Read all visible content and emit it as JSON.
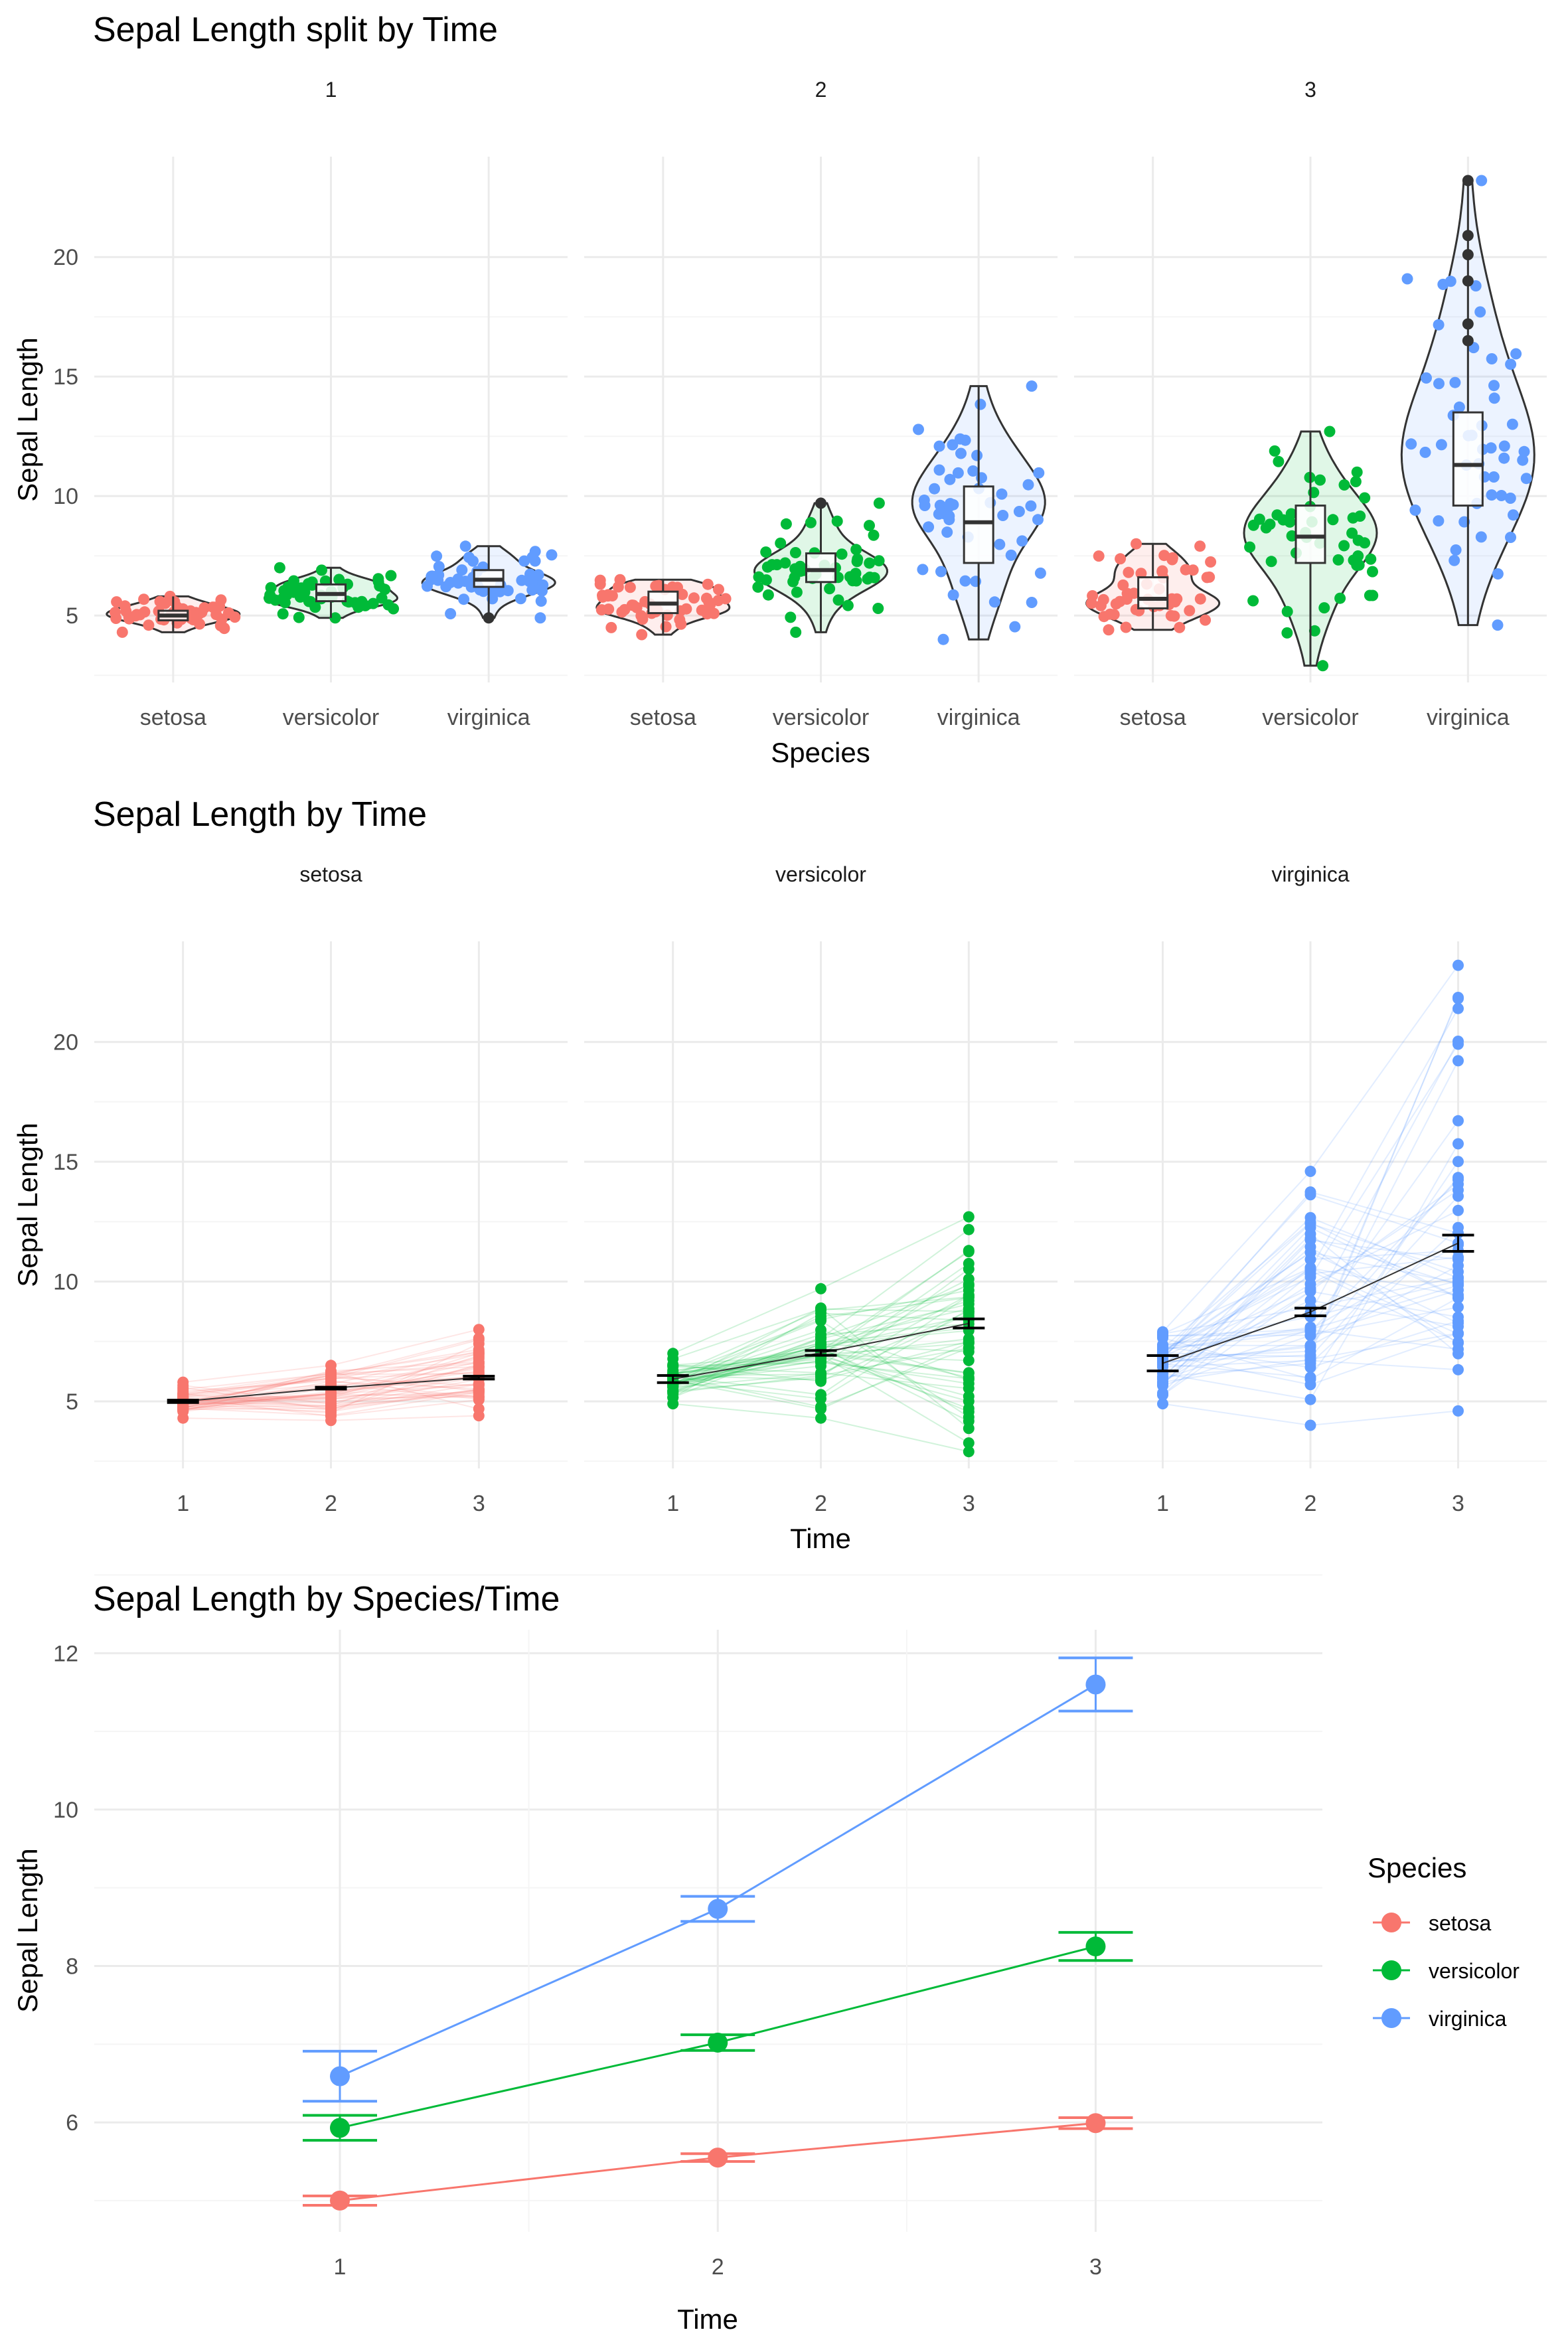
{
  "colors": {
    "setosa": "#F8766D",
    "versicolor": "#00BA38",
    "virginica": "#619CFF",
    "grid_major": "#EBEBEB",
    "grid_minor": "#F5F5F5",
    "dark": "#333333"
  },
  "chart_data": [
    {
      "type": "violin",
      "title": "Sepal Length split by Time",
      "xlabel": "Species",
      "ylabel": "Sepal Length",
      "facet_labels": [
        "1",
        "2",
        "3"
      ],
      "categories": [
        "setosa",
        "versicolor",
        "virginica"
      ],
      "ylim": [
        2.2,
        24.2
      ],
      "yticks": [
        5,
        10,
        15,
        20
      ],
      "grid": true,
      "facets": [
        {
          "label": "1",
          "groups": [
            {
              "species": "setosa",
              "min": 4.3,
              "q1": 4.8,
              "median": 5.0,
              "q3": 5.2,
              "max": 5.8,
              "outliers": []
            },
            {
              "species": "versicolor",
              "min": 4.9,
              "q1": 5.6,
              "median": 5.9,
              "q3": 6.3,
              "max": 7.0,
              "outliers": []
            },
            {
              "species": "virginica",
              "min": 4.9,
              "q1": 6.2,
              "median": 6.5,
              "q3": 6.9,
              "max": 7.9,
              "outliers": [
                4.9
              ]
            }
          ]
        },
        {
          "label": "2",
          "groups": [
            {
              "species": "setosa",
              "min": 4.2,
              "q1": 5.1,
              "median": 5.5,
              "q3": 6.0,
              "max": 6.5,
              "outliers": []
            },
            {
              "species": "versicolor",
              "min": 4.3,
              "q1": 6.4,
              "median": 6.9,
              "q3": 7.6,
              "max": 9.7,
              "outliers": [
                9.7
              ]
            },
            {
              "species": "virginica",
              "min": 4.0,
              "q1": 7.2,
              "median": 8.9,
              "q3": 10.4,
              "max": 14.6,
              "outliers": []
            }
          ]
        },
        {
          "label": "3",
          "groups": [
            {
              "species": "setosa",
              "min": 4.4,
              "q1": 5.3,
              "median": 5.7,
              "q3": 6.6,
              "max": 8.0,
              "outliers": []
            },
            {
              "species": "versicolor",
              "min": 2.9,
              "q1": 7.2,
              "median": 8.3,
              "q3": 9.6,
              "max": 12.7,
              "outliers": []
            },
            {
              "species": "virginica",
              "min": 4.6,
              "q1": 9.6,
              "median": 11.3,
              "q3": 13.5,
              "max": 23.2,
              "outliers": [
                16.5,
                17.2,
                19.0,
                20.1,
                20.9,
                23.2
              ]
            }
          ]
        }
      ]
    },
    {
      "type": "line",
      "title": "Sepal Length by Time",
      "xlabel": "Time",
      "ylabel": "Sepal Length",
      "facet_labels": [
        "setosa",
        "versicolor",
        "virginica"
      ],
      "x": [
        1,
        2,
        3
      ],
      "ylim": [
        2.2,
        24.2
      ],
      "yticks": [
        5,
        10,
        15,
        20
      ],
      "grid": true,
      "facets": [
        {
          "species": "setosa",
          "mean": [
            5.0,
            5.55,
            5.99
          ],
          "se": [
            0.05,
            0.04,
            0.06
          ],
          "min": [
            4.3,
            4.2,
            4.4
          ],
          "max": [
            5.8,
            6.5,
            8.0
          ]
        },
        {
          "species": "versicolor",
          "mean": [
            5.93,
            7.02,
            8.25
          ],
          "se": [
            0.15,
            0.1,
            0.19
          ],
          "min": [
            4.9,
            4.3,
            2.9
          ],
          "max": [
            7.0,
            9.7,
            12.7
          ]
        },
        {
          "species": "virginica",
          "mean": [
            6.59,
            8.73,
            11.6
          ],
          "se": [
            0.32,
            0.16,
            0.34
          ],
          "min": [
            4.9,
            4.0,
            4.6
          ],
          "max": [
            7.9,
            14.6,
            23.2
          ]
        }
      ]
    },
    {
      "type": "line",
      "title": "Sepal Length by Species/Time",
      "xlabel": "Time",
      "ylabel": "Sepal Length",
      "x": [
        1,
        2,
        3
      ],
      "xlim": [
        0.35,
        3.6
      ],
      "ylim": [
        4.6,
        12.3
      ],
      "yticks": [
        6,
        8,
        10,
        12
      ],
      "grid": true,
      "legend": {
        "title": "Species",
        "position": "right"
      },
      "series": [
        {
          "name": "setosa",
          "values": [
            5.0,
            5.55,
            5.99
          ],
          "se": [
            0.06,
            0.05,
            0.07
          ]
        },
        {
          "name": "versicolor",
          "values": [
            5.93,
            7.02,
            8.25
          ],
          "se": [
            0.16,
            0.1,
            0.18
          ]
        },
        {
          "name": "virginica",
          "values": [
            6.59,
            8.73,
            11.6
          ],
          "se": [
            0.32,
            0.16,
            0.34
          ]
        }
      ]
    }
  ]
}
